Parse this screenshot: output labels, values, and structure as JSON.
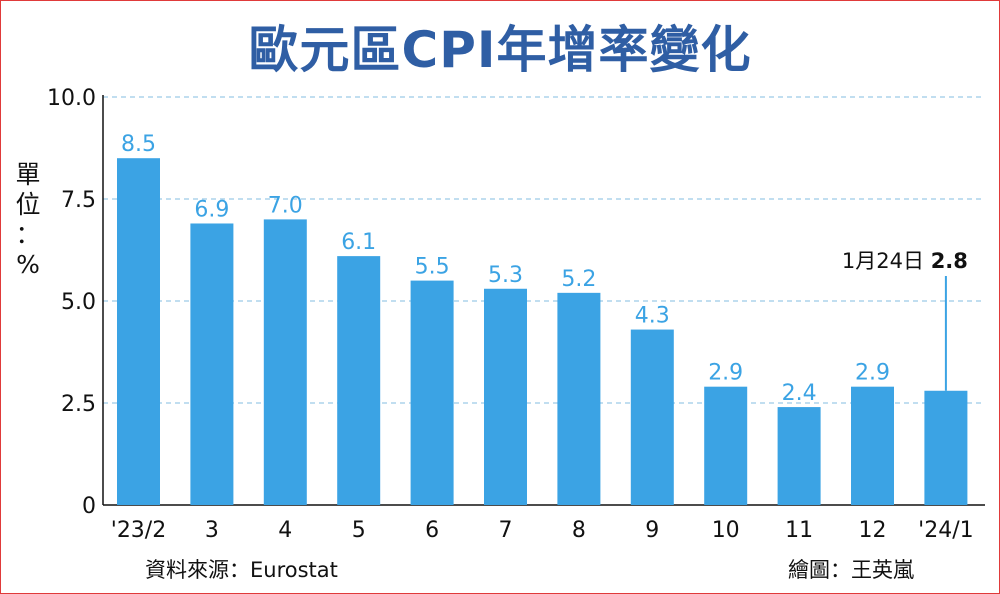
{
  "chart_data": {
    "type": "bar",
    "title": "歐元區CPI年增率變化",
    "unit_label": [
      "單",
      "位",
      "：",
      "%"
    ],
    "categories": [
      "'23/2",
      "3",
      "4",
      "5",
      "6",
      "7",
      "8",
      "9",
      "10",
      "11",
      "12",
      "'24/1"
    ],
    "values": [
      8.5,
      6.9,
      7.0,
      6.1,
      5.5,
      5.3,
      5.2,
      4.3,
      2.9,
      2.4,
      2.9,
      2.8
    ],
    "value_labels": [
      "8.5",
      "6.9",
      "7.0",
      "6.1",
      "5.5",
      "5.3",
      "5.2",
      "4.3",
      "2.9",
      "2.4",
      "2.9",
      ""
    ],
    "ylim": [
      0,
      10
    ],
    "yticks": [
      0,
      2.5,
      5.0,
      7.5,
      10.0
    ],
    "ytick_labels": [
      "0",
      "2.5",
      "5.0",
      "7.5",
      "10.0"
    ],
    "grid": true,
    "bar_color": "#3ba3e4",
    "annotation": {
      "label": "1月24日",
      "value": "2.8",
      "category_index": 11
    }
  },
  "source": "資料來源：Eurostat",
  "credit": "繪圖：王英嵐"
}
